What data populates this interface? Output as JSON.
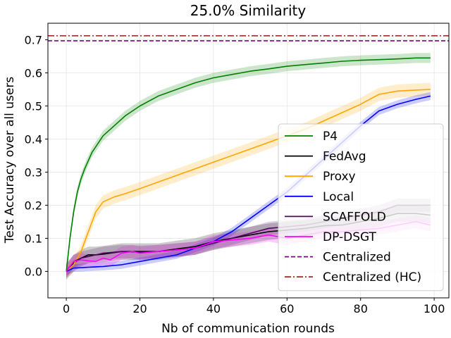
{
  "chart_data": {
    "type": "line",
    "title": "25.0% Similarity",
    "xlabel": "Nb of communication rounds",
    "ylabel": "Test Accuracy over all users",
    "xlim": [
      -5,
      104
    ],
    "ylim": [
      -0.08,
      0.75
    ],
    "xticks": [
      0,
      20,
      40,
      60,
      80,
      100
    ],
    "yticks": [
      0.0,
      0.1,
      0.2,
      0.3,
      0.4,
      0.5,
      0.6,
      0.7
    ],
    "xtick_labels": [
      "0",
      "20",
      "40",
      "60",
      "80",
      "100"
    ],
    "ytick_labels": [
      "0.0",
      "0.1",
      "0.2",
      "0.3",
      "0.4",
      "0.5",
      "0.6",
      "0.7"
    ],
    "grid": true,
    "legend_location": "lower-right",
    "series": [
      {
        "name": "P4",
        "color": "#008000",
        "style": "solid",
        "x": [
          0,
          1,
          2,
          3,
          4,
          5,
          7,
          10,
          13,
          16,
          20,
          25,
          30,
          35,
          40,
          45,
          50,
          55,
          60,
          65,
          70,
          75,
          80,
          85,
          90,
          95,
          99
        ],
        "y": [
          0.0,
          0.1,
          0.18,
          0.24,
          0.28,
          0.31,
          0.36,
          0.41,
          0.44,
          0.47,
          0.5,
          0.53,
          0.55,
          0.57,
          0.585,
          0.595,
          0.605,
          0.612,
          0.62,
          0.625,
          0.63,
          0.635,
          0.638,
          0.64,
          0.642,
          0.645,
          0.645
        ],
        "band": 0.015
      },
      {
        "name": "FedAvg",
        "color": "#000000",
        "style": "solid",
        "x": [
          0,
          2,
          4,
          6,
          8,
          10,
          15,
          20,
          25,
          30,
          35,
          40,
          45,
          50,
          55,
          60,
          65,
          70,
          75,
          80,
          85,
          90,
          95,
          99
        ],
        "y": [
          0.0,
          0.025,
          0.04,
          0.05,
          0.05,
          0.052,
          0.06,
          0.06,
          0.06,
          0.068,
          0.075,
          0.09,
          0.1,
          0.11,
          0.12,
          0.125,
          0.13,
          0.138,
          0.14,
          0.15,
          0.16,
          0.175,
          0.175,
          0.17
        ],
        "band": 0.025
      },
      {
        "name": "Proxy",
        "color": "#ffa500",
        "style": "solid",
        "x": [
          0,
          2,
          4,
          6,
          8,
          10,
          13,
          16,
          20,
          25,
          30,
          35,
          40,
          45,
          50,
          55,
          60,
          65,
          70,
          75,
          80,
          85,
          90,
          95,
          99
        ],
        "y": [
          0.0,
          0.02,
          0.06,
          0.12,
          0.18,
          0.21,
          0.225,
          0.235,
          0.25,
          0.27,
          0.29,
          0.31,
          0.33,
          0.35,
          0.37,
          0.39,
          0.41,
          0.43,
          0.455,
          0.48,
          0.505,
          0.535,
          0.545,
          0.548,
          0.55
        ],
        "band": 0.02
      },
      {
        "name": "Local",
        "color": "#0000ff",
        "style": "solid",
        "x": [
          0,
          2,
          5,
          10,
          15,
          20,
          25,
          30,
          35,
          40,
          45,
          50,
          55,
          60,
          65,
          70,
          75,
          80,
          85,
          90,
          95,
          99
        ],
        "y": [
          0.0,
          0.01,
          0.012,
          0.015,
          0.02,
          0.03,
          0.04,
          0.05,
          0.07,
          0.09,
          0.12,
          0.16,
          0.2,
          0.24,
          0.29,
          0.34,
          0.39,
          0.44,
          0.485,
          0.505,
          0.52,
          0.53
        ],
        "band": 0.012
      },
      {
        "name": "SCAFFOLD",
        "color": "#4b0a5a",
        "style": "solid",
        "x": [
          0,
          2,
          4,
          6,
          8,
          10,
          15,
          20,
          25,
          30,
          35,
          40,
          45,
          50,
          55,
          60,
          65,
          70,
          75,
          80,
          85,
          90,
          95,
          99
        ],
        "y": [
          0.0,
          0.03,
          0.04,
          0.045,
          0.05,
          0.055,
          0.06,
          0.058,
          0.06,
          0.065,
          0.07,
          0.085,
          0.1,
          0.115,
          0.13,
          0.135,
          0.14,
          0.15,
          0.16,
          0.17,
          0.18,
          0.2,
          0.2,
          0.2
        ],
        "band": 0.02
      },
      {
        "name": "DP-DSGT",
        "color": "#ff00ff",
        "style": "solid",
        "x": [
          0,
          2,
          4,
          6,
          8,
          10,
          12,
          15,
          18,
          20,
          25,
          30,
          35,
          40,
          45,
          50,
          55,
          60,
          65,
          70,
          75,
          80,
          85,
          90,
          95,
          99
        ],
        "y": [
          0.0,
          0.03,
          0.035,
          0.032,
          0.03,
          0.04,
          0.035,
          0.055,
          0.06,
          0.055,
          0.06,
          0.065,
          0.07,
          0.09,
          0.095,
          0.1,
          0.11,
          0.1,
          0.11,
          0.12,
          0.12,
          0.125,
          0.13,
          0.14,
          0.15,
          0.14
        ],
        "band": 0.02
      }
    ],
    "reference_lines": [
      {
        "name": "Centralized",
        "y": 0.697,
        "color": "#800080",
        "style": "dashed"
      },
      {
        "name": "Centralized (HC)",
        "y": 0.712,
        "color": "#a52a2a",
        "style": "dashdot"
      }
    ]
  }
}
